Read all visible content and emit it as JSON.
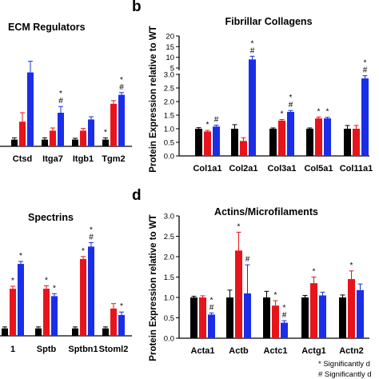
{
  "panels": {
    "b_letter": "b",
    "d_letter": "d"
  },
  "colors": {
    "wt": "#000000",
    "red": "#e8141b",
    "blue": "#1a2ee8"
  },
  "footnote": {
    "line1": "* Significantly d",
    "line2": "# Significantly d"
  },
  "chart_data": [
    {
      "id": "ecm",
      "type": "bar",
      "title": "ECM Regulators",
      "categories": [
        "Ctsd",
        "Itga7",
        "Itgb1",
        "Tgm2"
      ],
      "series": [
        {
          "values": [
            0.15,
            0.15,
            0.15,
            0.15
          ]
        },
        {
          "values": [
            0.55,
            0.35,
            0.35,
            0.95
          ]
        },
        {
          "values": [
            1.65,
            0.75,
            0.6,
            1.15
          ]
        }
      ],
      "errors": [
        [
          0.04,
          0.04,
          0.03,
          0.04
        ],
        [
          0.2,
          0.06,
          0.05,
          0.07
        ],
        [
          0.25,
          0.14,
          0.06,
          0.05
        ]
      ],
      "marks": [
        [
          "",
          "",
          ""
        ],
        [
          "",
          "",
          "*#"
        ],
        [
          "",
          "",
          ""
        ],
        [
          "*",
          "",
          "*#"
        ]
      ]
    },
    {
      "id": "fib",
      "type": "bar",
      "title": "Fibrillar Collagens",
      "ylabel": "Protein Expression relative to WT",
      "categories": [
        "Col1a1",
        "Col2a1",
        "Col3a1",
        "Col5a1",
        "Col11a1"
      ],
      "yticks": [
        "0.0",
        "0.5",
        "1.0",
        "1.5",
        "2.0",
        "2.5",
        "3.0",
        "5",
        "10",
        "15",
        "20"
      ],
      "series": [
        {
          "values": [
            1.0,
            1.0,
            1.0,
            1.0,
            1.0
          ]
        },
        {
          "values": [
            0.9,
            0.55,
            1.3,
            1.38,
            1.0
          ]
        },
        {
          "values": [
            1.08,
            9.0,
            1.62,
            1.38,
            2.85
          ]
        }
      ],
      "errors": [
        [
          0.04,
          0.15,
          0.03,
          0.03,
          0.12
        ],
        [
          0.04,
          0.12,
          0.04,
          0.05,
          0.12
        ],
        [
          0.05,
          1.5,
          0.05,
          0.04,
          0.1
        ]
      ],
      "marks": [
        [
          "",
          "*",
          "#"
        ],
        [
          "",
          "",
          "*#"
        ],
        [
          "",
          "*",
          "*#"
        ],
        [
          "",
          "*",
          "*"
        ],
        [
          "",
          "",
          "*#"
        ]
      ]
    },
    {
      "id": "spec",
      "type": "bar",
      "title": "Spectrins",
      "categories": [
        "1",
        "Sptb",
        "Sptbn1",
        "Stoml2"
      ],
      "series": [
        {
          "values": [
            0.15,
            0.15,
            0.15,
            0.15
          ]
        },
        {
          "values": [
            0.95,
            0.95,
            1.55,
            0.55
          ]
        },
        {
          "values": [
            1.45,
            0.8,
            1.8,
            0.42
          ]
        }
      ],
      "errors": [
        [
          0.03,
          0.03,
          0.03,
          0.03
        ],
        [
          0.05,
          0.06,
          0.05,
          0.1
        ],
        [
          0.05,
          0.05,
          0.08,
          0.06
        ]
      ],
      "marks": [
        [
          "",
          "*",
          "*"
        ],
        [
          "",
          "*",
          "*"
        ],
        [
          "",
          "*",
          "*#"
        ],
        [
          "",
          "",
          "*"
        ]
      ]
    },
    {
      "id": "act",
      "type": "bar",
      "title": "Actins/Microfilaments",
      "ylabel": "Protein Expression relative to WT",
      "categories": [
        "Acta1",
        "Actb",
        "Actc1",
        "Actg1",
        "Actn2"
      ],
      "yticks": [
        "0.0",
        "0.5",
        "1.0",
        "1.5",
        "2.0",
        "2.5",
        "3.0"
      ],
      "ylim": [
        0,
        3
      ],
      "series": [
        {
          "values": [
            1.0,
            1.0,
            1.0,
            1.0,
            1.0
          ]
        },
        {
          "values": [
            1.0,
            2.15,
            0.8,
            1.35,
            1.45
          ]
        },
        {
          "values": [
            0.58,
            1.1,
            0.38,
            1.05,
            1.18
          ]
        }
      ],
      "errors": [
        [
          0.03,
          0.18,
          0.15,
          0.05,
          0.06
        ],
        [
          0.04,
          0.45,
          0.12,
          0.15,
          0.2
        ],
        [
          0.04,
          0.7,
          0.05,
          0.08,
          0.15
        ]
      ],
      "marks": [
        [
          "",
          "",
          "*#"
        ],
        [
          "",
          "*",
          "#"
        ],
        [
          "",
          "*",
          "*#"
        ],
        [
          "",
          "*",
          ""
        ],
        [
          "",
          "*",
          ""
        ]
      ]
    }
  ]
}
